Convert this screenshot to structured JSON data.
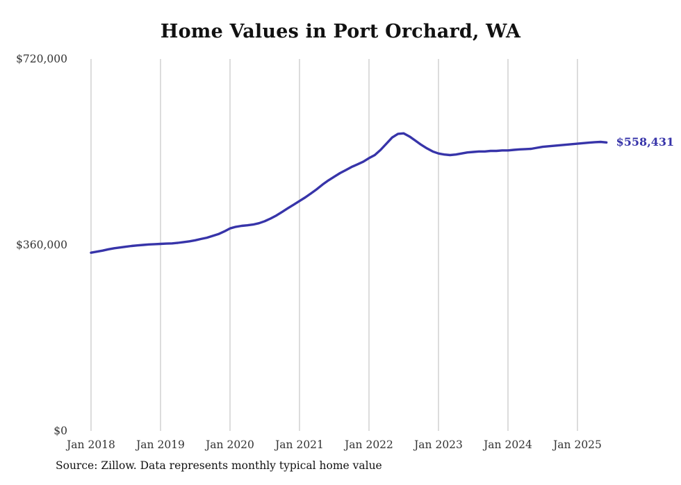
{
  "chart": {
    "title": "Home Values in Port Orchard, WA",
    "end_label": "$558,431",
    "source_note": "Source: Zillow. Data represents monthly typical home value"
  },
  "chart_data": {
    "type": "line",
    "title": "Home Values in Port Orchard, WA",
    "xlabel": "",
    "ylabel": "",
    "ylim": [
      0,
      720000
    ],
    "y_ticks": [
      0,
      360000,
      720000
    ],
    "y_tick_labels": [
      "$0",
      "$360,000",
      "$720,000"
    ],
    "x_tick_labels": [
      "Jan 2018",
      "Jan 2019",
      "Jan 2020",
      "Jan 2021",
      "Jan 2022",
      "Jan 2023",
      "Jan 2024",
      "Jan 2025"
    ],
    "start_month": "2018-01",
    "end_month": "2025-06",
    "grid": "vertical-only",
    "legend": "none",
    "line_color": "#3734a9",
    "grid_color": "#c9c9c9",
    "last_value": 558431,
    "values": [
      345000,
      347000,
      349000,
      351500,
      353500,
      355000,
      356500,
      358000,
      359000,
      360000,
      361000,
      361500,
      362000,
      362500,
      363000,
      364000,
      365500,
      367000,
      369000,
      371500,
      374000,
      377500,
      381000,
      386000,
      392000,
      395000,
      397000,
      398000,
      399500,
      402000,
      406000,
      411000,
      417000,
      424000,
      431000,
      438000,
      445000,
      452000,
      460000,
      468000,
      477000,
      485000,
      492000,
      499000,
      505000,
      511000,
      516000,
      521000,
      528000,
      534000,
      544000,
      556000,
      568000,
      575000,
      576000,
      570000,
      562000,
      554000,
      547000,
      541000,
      537000,
      535000,
      534000,
      535000,
      537000,
      539000,
      540000,
      541000,
      541000,
      542000,
      542000,
      543000,
      543000,
      544000,
      545000,
      545500,
      546000,
      548000,
      550000,
      551000,
      552000,
      553000,
      554000,
      555000,
      556000,
      557000,
      558000,
      559000,
      559500,
      558431
    ]
  }
}
